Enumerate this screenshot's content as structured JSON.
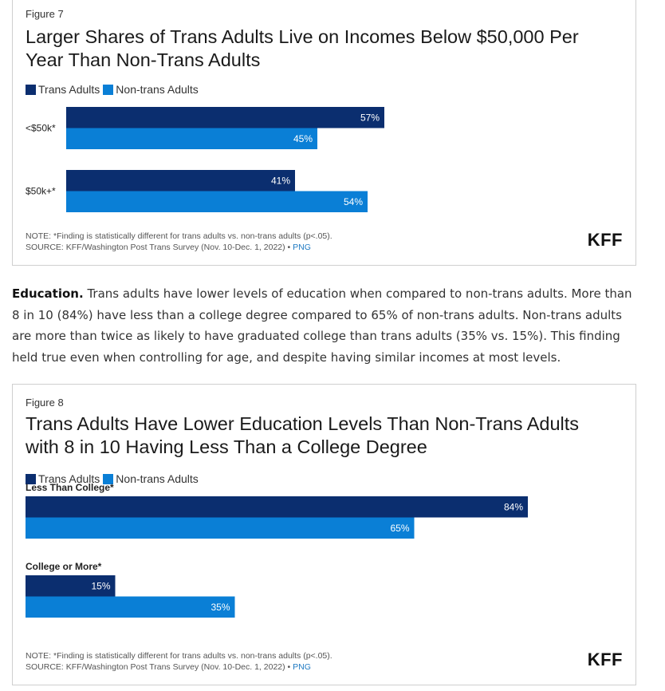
{
  "colors": {
    "trans": "#0b2e6f",
    "nontrans": "#0a7fd6"
  },
  "figure7": {
    "label": "Figure 7",
    "title": "Larger Shares of Trans Adults Live on Incomes Below $50,000 Per Year Than Non-Trans Adults",
    "note": "NOTE: *Finding is statistically different for trans adults vs. non-trans adults (p<.05).",
    "source": "SOURCE: KFF/Washington Post Trans Survey (Nov. 10-Dec. 1, 2022) •",
    "png_link": "PNG",
    "logo": "KFF"
  },
  "paragraph": {
    "lead": "Education.",
    "text": " Trans adults have lower levels of education when compared to non-trans adults. More than 8 in 10 (84%) have less than a college degree compared to 65% of non-trans adults. Non-trans adults are more than twice as likely to have graduated college than trans adults (35% vs. 15%). This finding held true even when controlling for age, and despite having similar incomes at most levels."
  },
  "figure8": {
    "label": "Figure 8",
    "title": "Trans Adults Have Lower Education Levels Than Non-Trans Adults with 8 in 10 Having Less Than a College Degree",
    "note": "NOTE: *Finding is statistically different for trans adults vs. non-trans adults (p<.05).",
    "source": "SOURCE: KFF/Washington Post Trans Survey (Nov. 10-Dec. 1, 2022) •",
    "png_link": "PNG",
    "logo": "KFF"
  },
  "chart_data": [
    {
      "type": "bar",
      "orientation": "horizontal",
      "categories": [
        "<$50k*",
        "$50k+*"
      ],
      "series": [
        {
          "name": "Trans Adults",
          "values": [
            57,
            41
          ],
          "labels": [
            "57%",
            "41%"
          ]
        },
        {
          "name": "Non-trans Adults",
          "values": [
            45,
            54
          ],
          "labels": [
            "45%",
            "54%"
          ]
        }
      ],
      "xlim": [
        0,
        100
      ],
      "legend": "top-left",
      "grid": false
    },
    {
      "type": "bar",
      "orientation": "horizontal",
      "categories": [
        "Less Than College*",
        "College or More*"
      ],
      "series": [
        {
          "name": "Trans Adults",
          "values": [
            84,
            15
          ],
          "labels": [
            "84%",
            "15%"
          ]
        },
        {
          "name": "Non-trans Adults",
          "values": [
            65,
            35
          ],
          "labels": [
            "65%",
            "35%"
          ]
        }
      ],
      "xlim": [
        0,
        100
      ],
      "legend": "top-left",
      "grid": false
    }
  ]
}
